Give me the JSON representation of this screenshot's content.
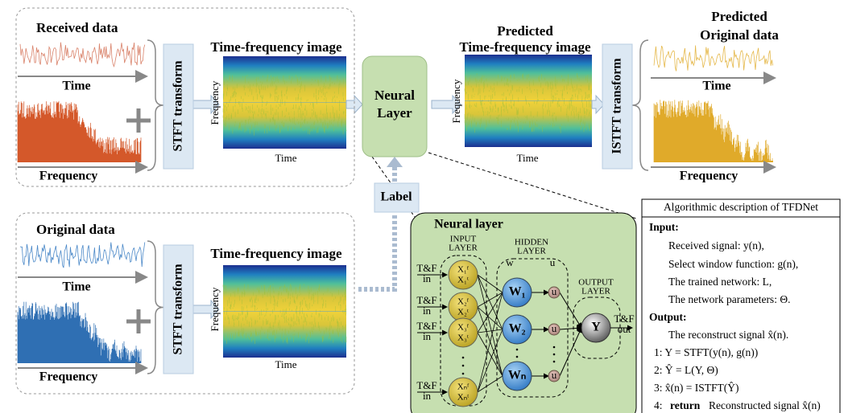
{
  "received": {
    "title": "Received data",
    "time_label": "Time",
    "freq_label": "Frequency"
  },
  "stft_top": "STFT transform",
  "tf_top": {
    "title": "Time-frequency image",
    "y_label": "Frequency",
    "x_label": "Time"
  },
  "neural_layer": [
    "Neural",
    "Layer"
  ],
  "predicted_tf": {
    "title": [
      "Predicted",
      "Time-frequency image"
    ],
    "y_label": "Frequency",
    "x_label": "Time"
  },
  "istft": "ISTFT transform",
  "predicted_original": {
    "title": [
      "Predicted",
      "Original data"
    ],
    "time_label": "Time",
    "freq_label": "Frequency"
  },
  "label": "Label",
  "original": {
    "title": "Original data",
    "time_label": "Time",
    "freq_label": "Frequency"
  },
  "stft_bottom": "STFT transform",
  "tf_bottom": {
    "title": "Time-frequency image",
    "y_label": "Frequency",
    "x_label": "Time"
  },
  "network": {
    "title": "Neural layer",
    "input_layer": [
      "INPUT",
      "LAYER"
    ],
    "hidden_layer": [
      "HIDDEN",
      "LAYER"
    ],
    "output_layer": [
      "OUTPUT",
      "LAYER"
    ],
    "w": "w",
    "u": "u",
    "inputs": [
      [
        "T&F",
        "in"
      ],
      [
        "T&F",
        "in"
      ],
      [
        "T&F",
        "in"
      ],
      [
        "T&F",
        "in"
      ]
    ],
    "input_nodes": [
      [
        "X₁ᶠ",
        "X₁ᵗ"
      ],
      [
        "X₂ᶠ",
        "X₂ᵗ"
      ],
      [
        "X₃ᶠ",
        "X₃ᵗ"
      ],
      [
        "Xₙᶠ",
        "Xₙᵗ"
      ]
    ],
    "hidden_nodes": [
      "W₁",
      "W₂",
      "Wₙ"
    ],
    "u_nodes": [
      "u",
      "u",
      "u"
    ],
    "output_node": "Y",
    "output": [
      "T&F",
      "out"
    ]
  },
  "algorithm": {
    "title": "Algorithmic description of TFDNet",
    "input_heading": "Input:",
    "inputs": [
      "Received signal: y(n),",
      "Select window function: g(n),",
      "The trained network: L,",
      "The network parameters: Θ."
    ],
    "output_heading": "Output:",
    "output": "The reconstruct signal x̂(n).",
    "steps": [
      "1:  Y = STFT(y(n), g(n))",
      "2:  Ŷ = L(Y, Θ)",
      "3:  x̂(n) = ISTFT(Ŷ)"
    ],
    "final_step": {
      "number": "4:",
      "keyword": "return",
      "text": "Reconstructed signal x̂(n)"
    }
  }
}
